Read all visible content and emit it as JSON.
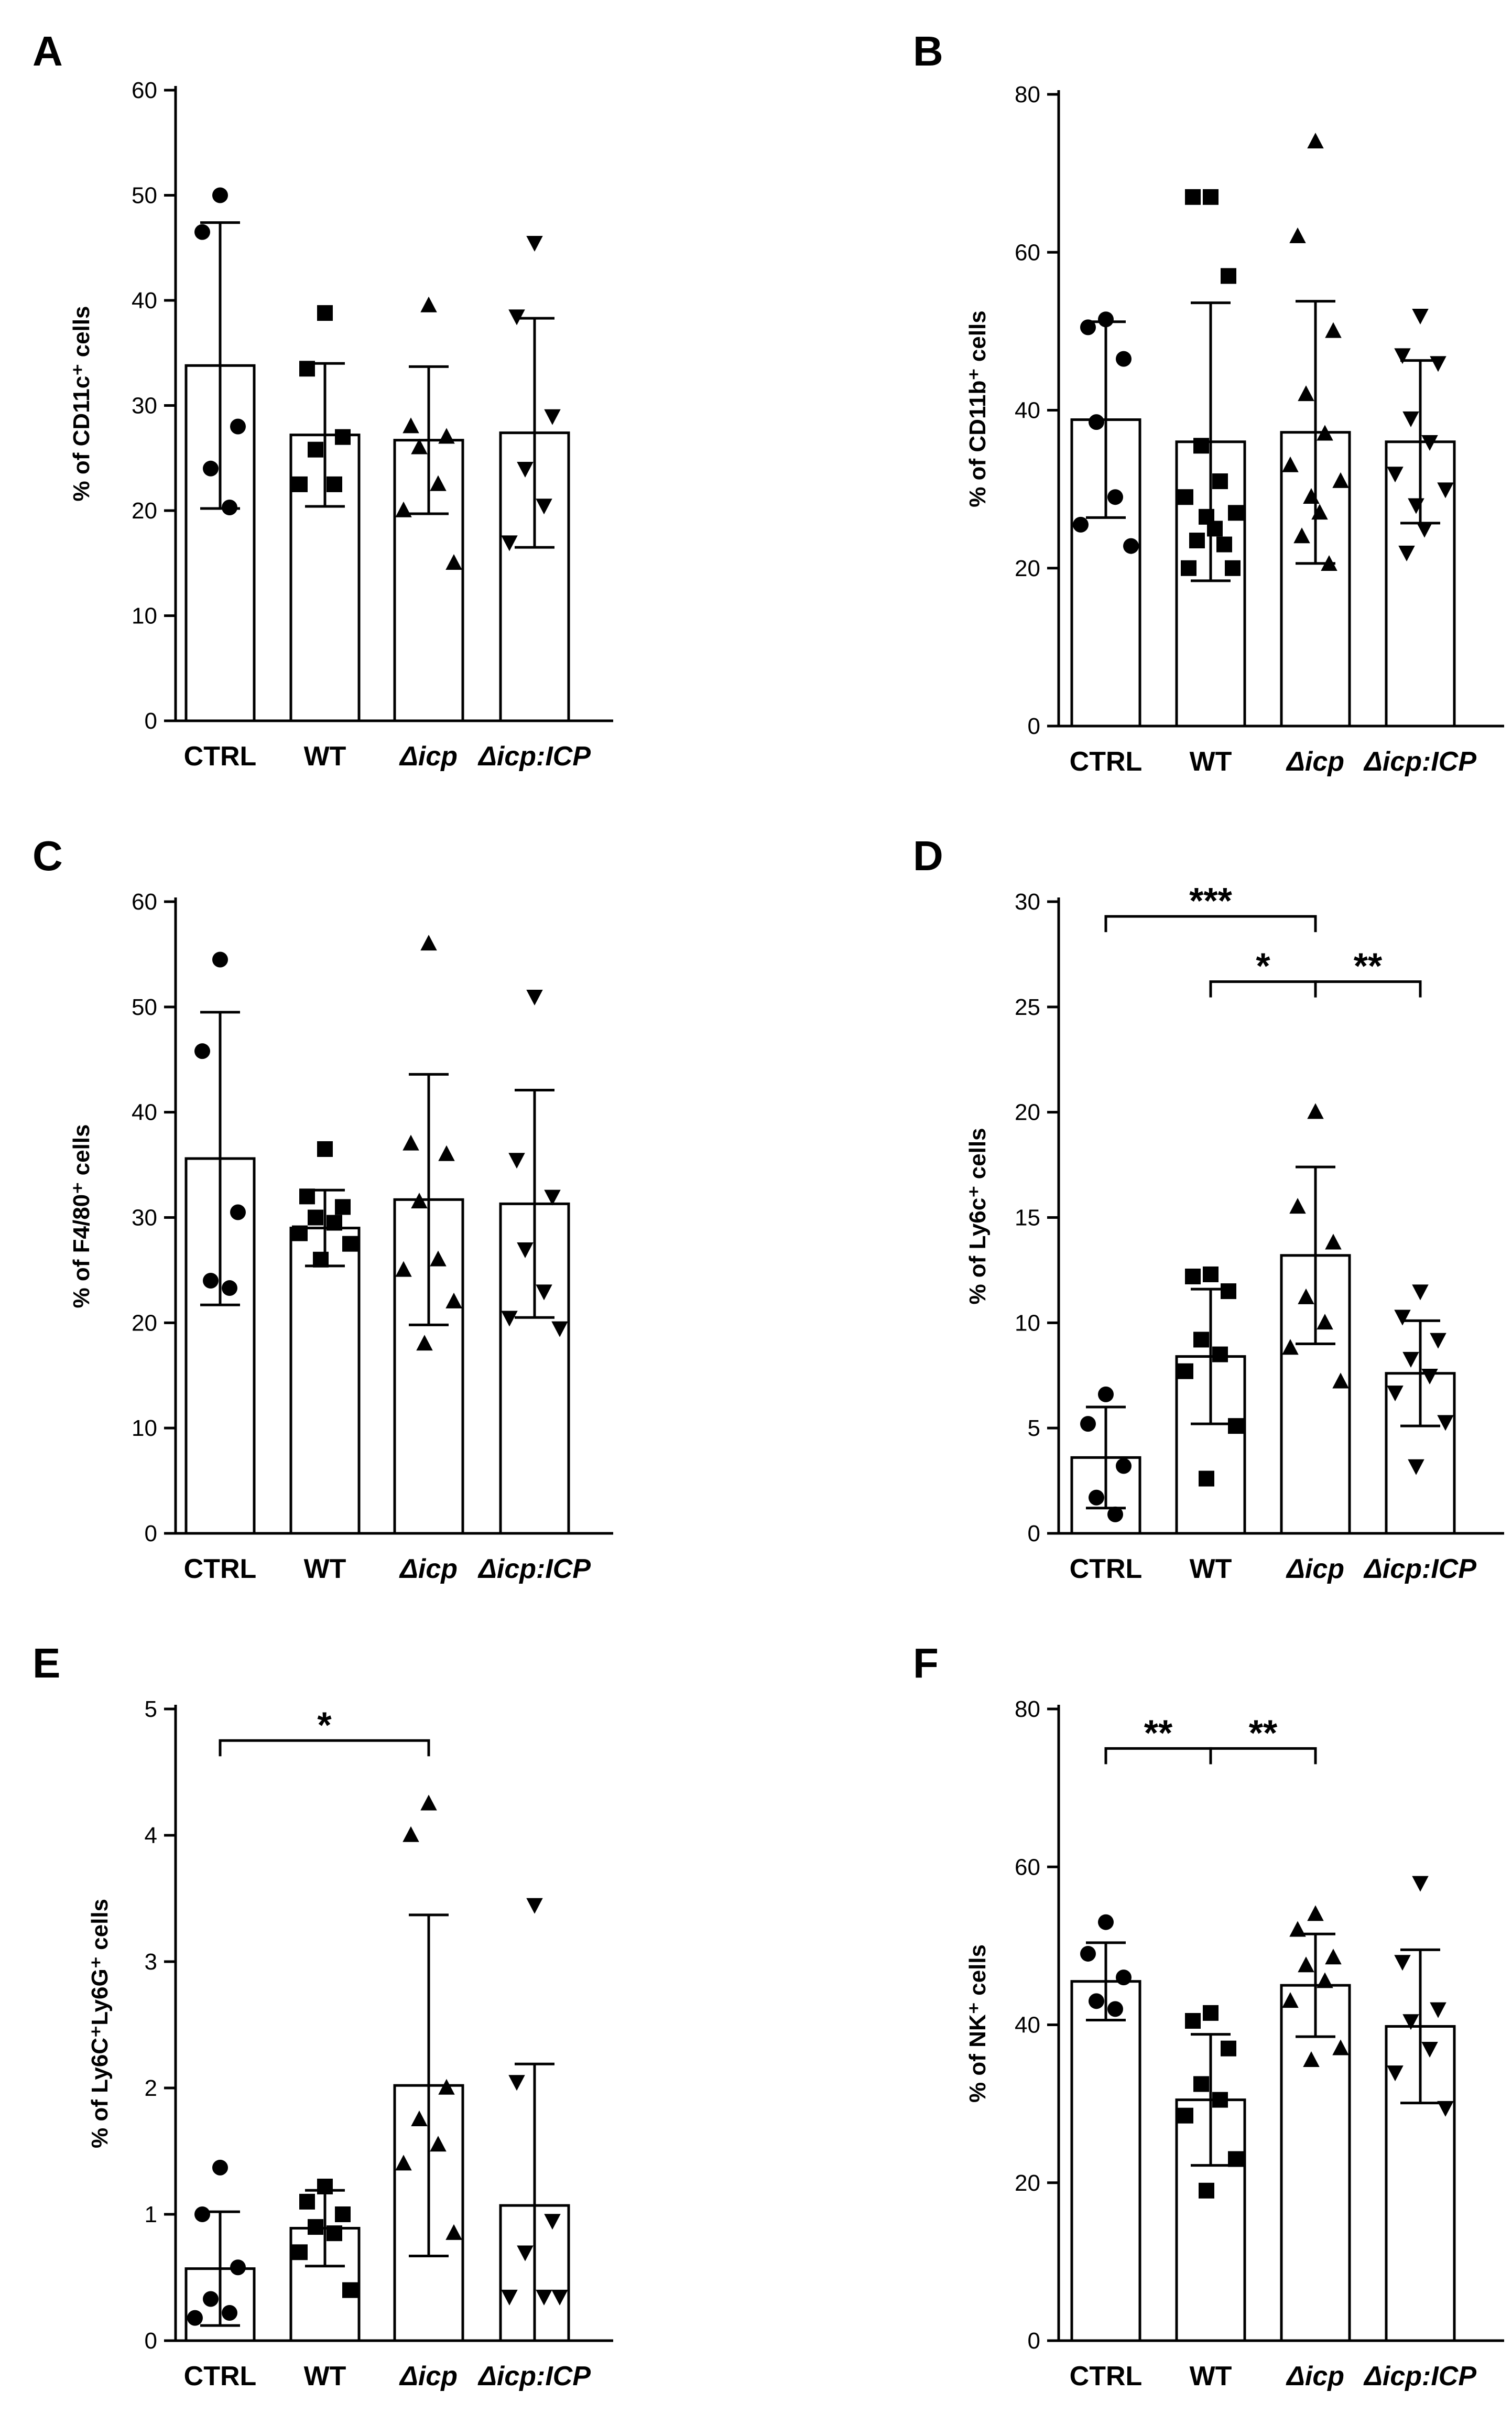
{
  "figure": {
    "x_categories": [
      "CTRL",
      "WT",
      "Δicp",
      "Δicp:ICP"
    ],
    "colors": {
      "stroke": "#000000",
      "bar_fill": "#ffffff",
      "marker_fill": "#000000"
    }
  },
  "chart_data": [
    {
      "id": "A",
      "type": "bar",
      "letter": "A",
      "ylabel": "% of CD11c⁺ cells",
      "ylim": [
        0,
        60
      ],
      "yticks": [
        0,
        10,
        20,
        30,
        40,
        50,
        60
      ],
      "ytick_labels": [
        "0",
        "10",
        "20",
        "30",
        "40",
        "50",
        "60"
      ],
      "categories": [
        "CTRL",
        "WT",
        "Δicp",
        "Δicp:ICP"
      ],
      "markers": [
        "circle",
        "square",
        "triangle-up",
        "triangle-down"
      ],
      "means": [
        33.8,
        27.2,
        26.7,
        27.4
      ],
      "sd": [
        13.6,
        6.8,
        7.0,
        10.9
      ],
      "points": [
        [
          50,
          46.5,
          28,
          24,
          20.3
        ],
        [
          38.8,
          33.5,
          27,
          25.8,
          22.5,
          22.5
        ],
        [
          39.5,
          28,
          27,
          26,
          22.5,
          20,
          15
        ],
        [
          45.5,
          38.5,
          29,
          24,
          20.5,
          17
        ]
      ],
      "significance": []
    },
    {
      "id": "B",
      "type": "bar",
      "letter": "B",
      "ylabel": "% of CD11b⁺ cells",
      "ylim": [
        0,
        80
      ],
      "yticks": [
        0,
        20,
        40,
        60,
        80
      ],
      "ytick_labels": [
        "0",
        "20",
        "40",
        "60",
        "80"
      ],
      "categories": [
        "CTRL",
        "WT",
        "Δicp",
        "Δicp:ICP"
      ],
      "markers": [
        "circle",
        "square",
        "triangle-up",
        "triangle-down"
      ],
      "means": [
        38.8,
        36.0,
        37.2,
        36.0
      ],
      "sd": [
        12.4,
        17.6,
        16.6,
        10.3
      ],
      "points": [
        [
          51.5,
          50.5,
          46.5,
          38.5,
          29,
          25.5,
          22.8
        ],
        [
          67,
          67,
          57,
          35.5,
          31,
          29,
          27,
          26.5,
          25,
          23.5,
          23,
          20,
          20
        ],
        [
          74,
          62,
          50,
          42,
          37,
          33,
          31,
          29,
          27,
          24,
          20.5
        ],
        [
          52,
          47,
          46,
          39,
          36,
          32,
          30,
          28,
          25,
          22
        ]
      ],
      "significance": []
    },
    {
      "id": "C",
      "type": "bar",
      "letter": "C",
      "ylabel": "% of F4/80⁺ cells",
      "ylim": [
        0,
        60
      ],
      "yticks": [
        0,
        10,
        20,
        30,
        40,
        50,
        60
      ],
      "ytick_labels": [
        "0",
        "10",
        "20",
        "30",
        "40",
        "50",
        "60"
      ],
      "categories": [
        "CTRL",
        "WT",
        "Δicp",
        "Δicp:ICP"
      ],
      "markers": [
        "circle",
        "square",
        "triangle-up",
        "triangle-down"
      ],
      "means": [
        35.6,
        29.0,
        31.7,
        31.3
      ],
      "sd": [
        13.9,
        3.6,
        11.9,
        10.8
      ],
      "points": [
        [
          54.5,
          45.8,
          30.5,
          24,
          23.3
        ],
        [
          36.5,
          32,
          31,
          30,
          29.5,
          28.5,
          27.5,
          26
        ],
        [
          56,
          37,
          36,
          31.5,
          26,
          25,
          22,
          18
        ],
        [
          51,
          35.5,
          32,
          27,
          23,
          20.5,
          19.5
        ]
      ],
      "significance": []
    },
    {
      "id": "D",
      "type": "bar",
      "letter": "D",
      "ylabel": "% of Ly6c⁺ cells",
      "ylim": [
        0,
        30
      ],
      "yticks": [
        0,
        5,
        10,
        15,
        20,
        25,
        30
      ],
      "ytick_labels": [
        "0",
        "5",
        "10",
        "15",
        "20",
        "25",
        "30"
      ],
      "categories": [
        "CTRL",
        "WT",
        "Δicp",
        "Δicp:ICP"
      ],
      "markers": [
        "circle",
        "square",
        "triangle-up",
        "triangle-down"
      ],
      "means": [
        3.6,
        8.4,
        13.2,
        7.6
      ],
      "sd": [
        2.4,
        3.2,
        4.2,
        2.5
      ],
      "points": [
        [
          6.6,
          5.2,
          3.2,
          1.7,
          0.9
        ],
        [
          12.3,
          12.2,
          11.5,
          9.2,
          8.5,
          7.7,
          5.1,
          2.6
        ],
        [
          20,
          15.5,
          13.8,
          11.2,
          10,
          8.8,
          7.2
        ],
        [
          11.5,
          10.3,
          9.2,
          8.3,
          7.5,
          6.7,
          5.3,
          3.2
        ]
      ],
      "significance": [
        {
          "from": 0,
          "to": 2,
          "level": 29.3,
          "label": "***"
        },
        {
          "from": 1,
          "to": 2,
          "level": 26.2,
          "label": "*"
        },
        {
          "from": 2,
          "to": 3,
          "level": 26.2,
          "label": "**"
        }
      ]
    },
    {
      "id": "E",
      "type": "bar",
      "letter": "E",
      "ylabel": "% of Ly6C⁺Ly6G⁺ cells",
      "ylim": [
        0,
        5
      ],
      "yticks": [
        0,
        1,
        2,
        3,
        4,
        5
      ],
      "ytick_labels": [
        "0",
        "1",
        "2",
        "3",
        "4",
        "5"
      ],
      "categories": [
        "CTRL",
        "WT",
        "Δicp",
        "Δicp:ICP"
      ],
      "markers": [
        "circle",
        "square",
        "triangle-up",
        "triangle-down"
      ],
      "means": [
        0.57,
        0.89,
        2.02,
        1.07
      ],
      "sd": [
        0.45,
        0.3,
        1.35,
        1.12
      ],
      "points": [
        [
          1.37,
          1.0,
          0.58,
          0.33,
          0.22,
          0.18
        ],
        [
          1.22,
          1.1,
          1.0,
          0.9,
          0.85,
          0.7,
          0.4
        ],
        [
          4.25,
          4.0,
          2.0,
          1.75,
          1.55,
          1.4,
          0.85
        ],
        [
          3.45,
          2.05,
          0.95,
          0.7,
          0.35,
          0.35,
          0.35
        ]
      ],
      "significance": [
        {
          "from": 0,
          "to": 2,
          "level": 4.75,
          "label": "*"
        }
      ]
    },
    {
      "id": "F",
      "type": "bar",
      "letter": "F",
      "ylabel": "% of NK⁺ cells",
      "ylim": [
        0,
        80
      ],
      "yticks": [
        0,
        20,
        40,
        60,
        80
      ],
      "ytick_labels": [
        "0",
        "20",
        "40",
        "60",
        "80"
      ],
      "categories": [
        "CTRL",
        "WT",
        "Δicp",
        "Δicp:ICP"
      ],
      "markers": [
        "circle",
        "square",
        "triangle-up",
        "triangle-down"
      ],
      "means": [
        45.5,
        30.5,
        45.0,
        39.8
      ],
      "sd": [
        4.9,
        8.3,
        6.5,
        9.7
      ],
      "points": [
        [
          53,
          49,
          46,
          43,
          42
        ],
        [
          41.5,
          40.5,
          37,
          32.5,
          30.5,
          28.5,
          23,
          19
        ],
        [
          54,
          52,
          48.5,
          47.5,
          45.5,
          43,
          37,
          35.5
        ],
        [
          58,
          48,
          42,
          40.5,
          37,
          34,
          29.5
        ]
      ],
      "significance": [
        {
          "from": 0,
          "to": 1,
          "level": 75,
          "label": "**"
        },
        {
          "from": 1,
          "to": 2,
          "level": 75,
          "label": "**"
        }
      ]
    }
  ]
}
